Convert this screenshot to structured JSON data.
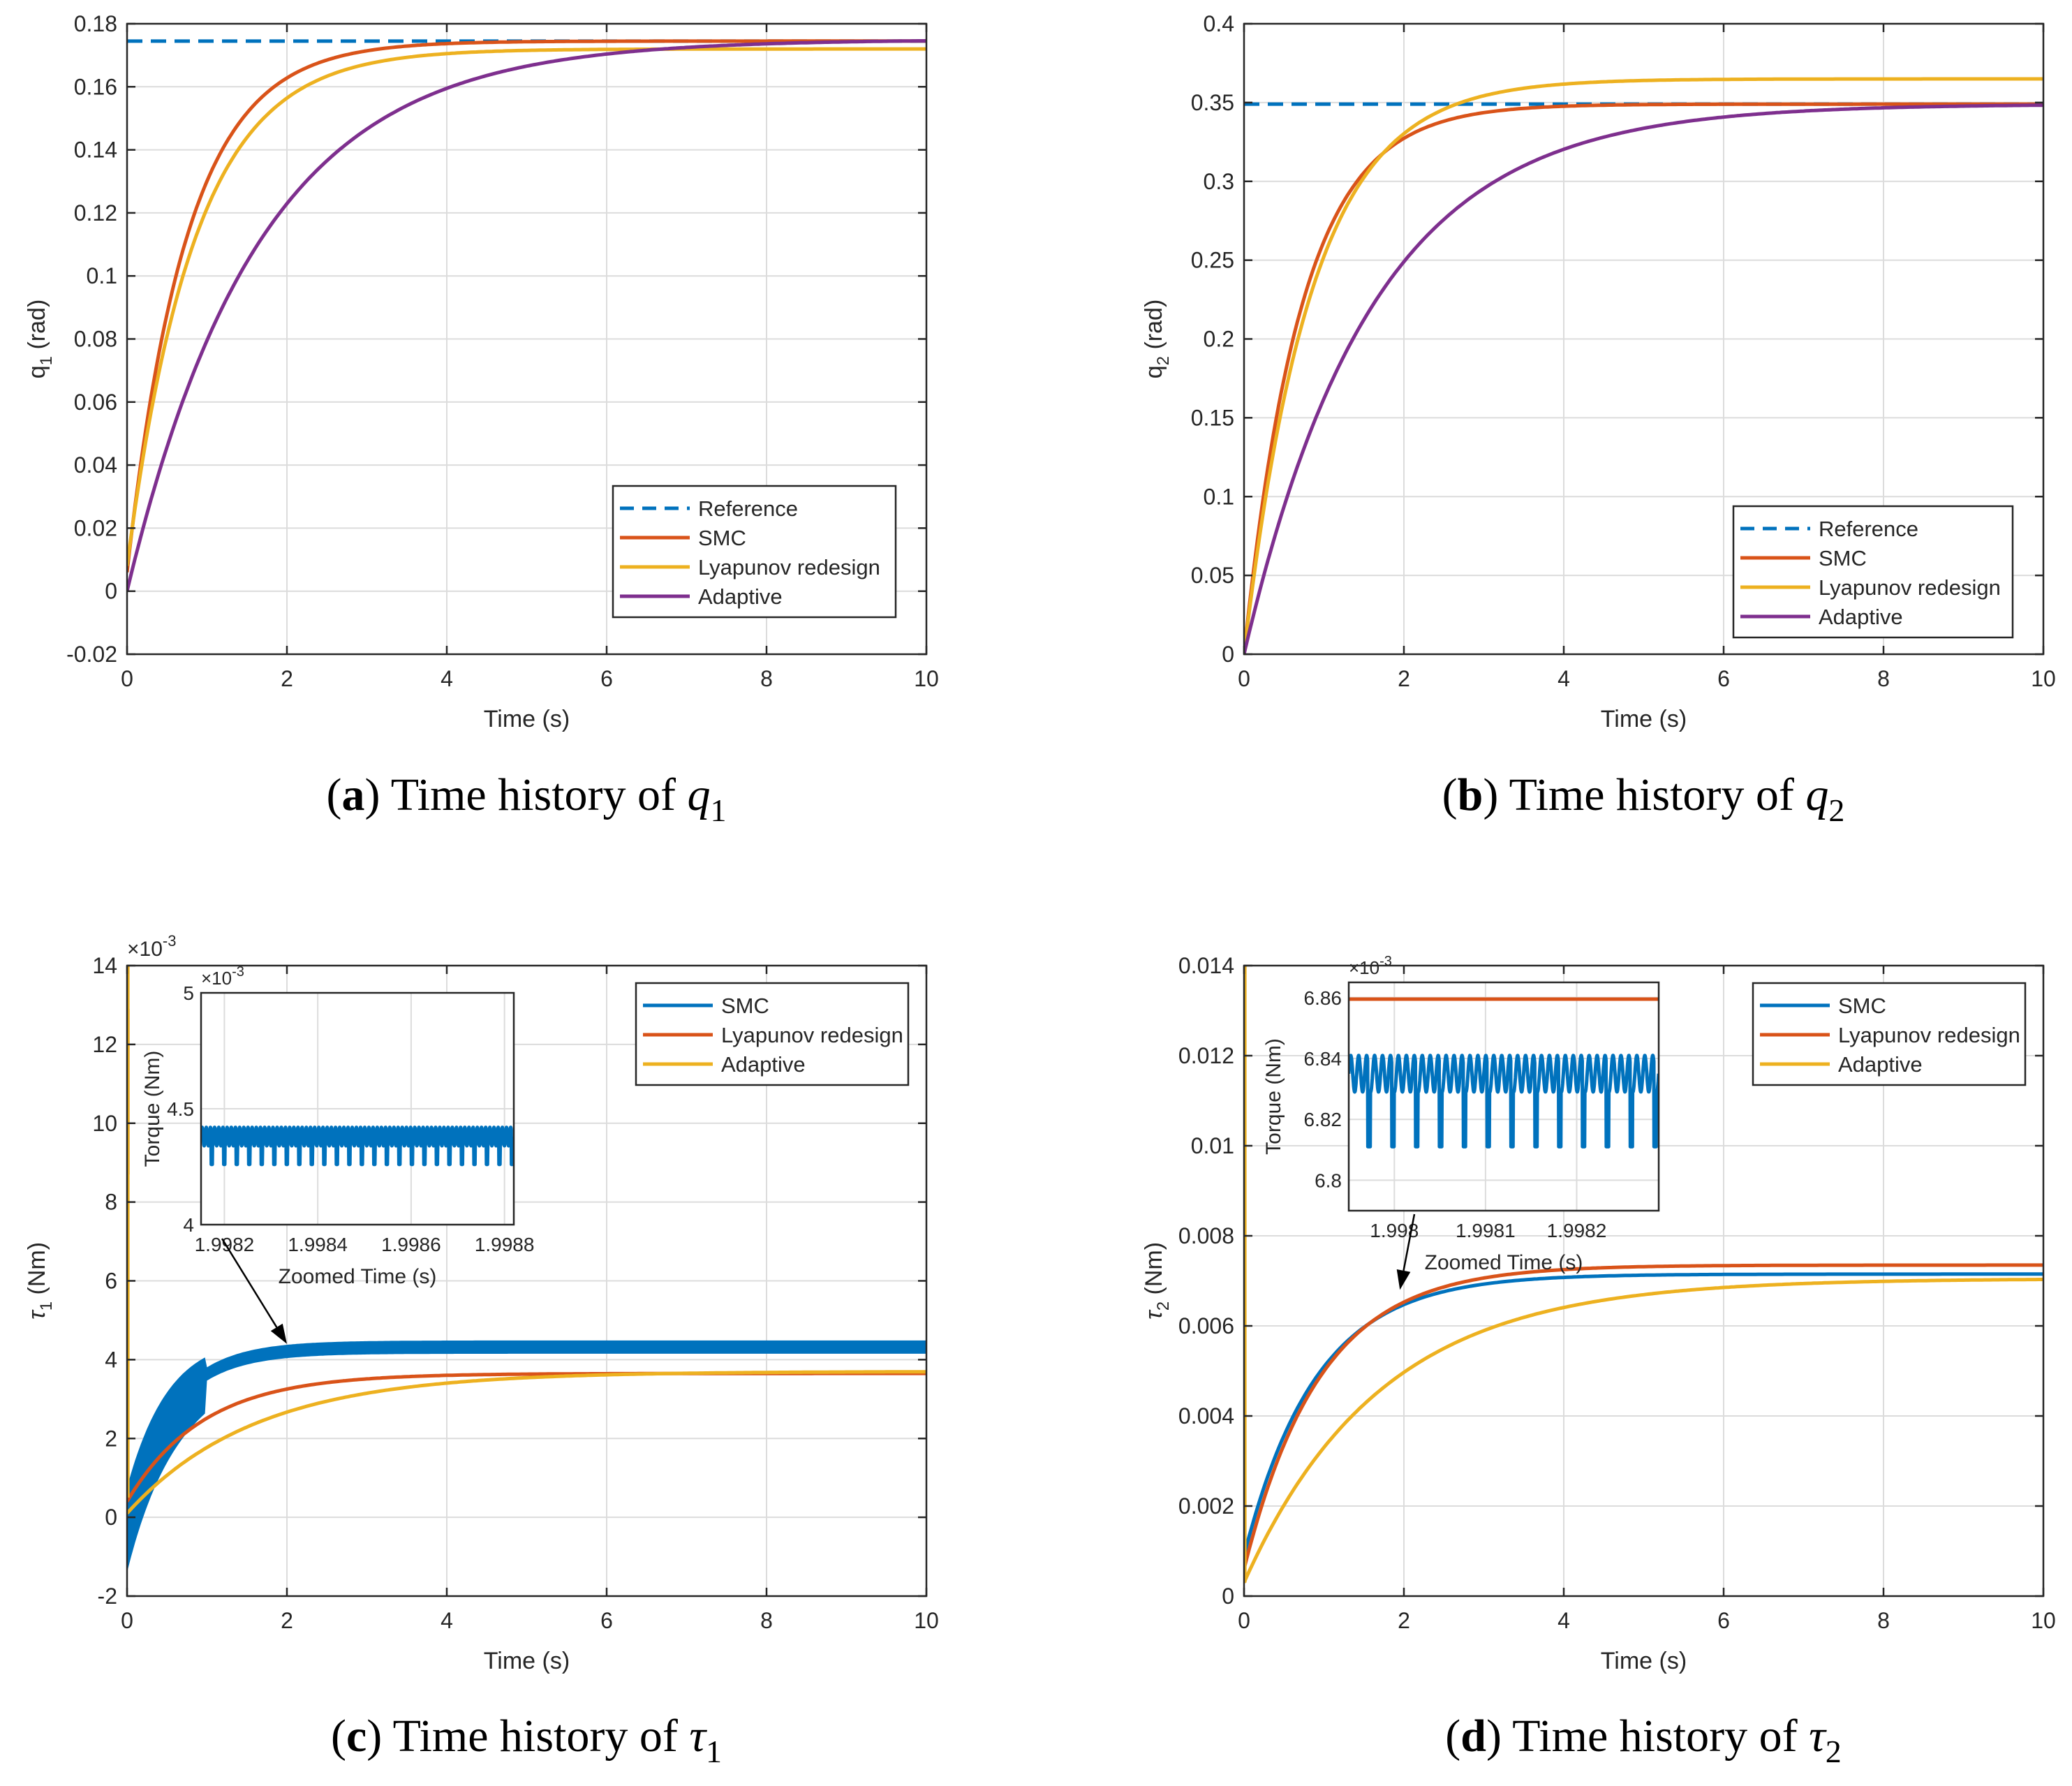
{
  "chart_data": [
    {
      "panel": "a",
      "type": "line",
      "caption": {
        "letter": "a",
        "text": "Time history of",
        "symbol": "q",
        "sub": "1"
      },
      "xlabel": "Time (s)",
      "ylabel": {
        "symbol": "q",
        "sub": "1",
        "unit": "(rad)"
      },
      "xlim": [
        0,
        10
      ],
      "ylim": [
        -0.02,
        0.18
      ],
      "xticks": [
        0,
        2,
        4,
        6,
        8,
        10
      ],
      "xtick_labels": [
        "0",
        "2",
        "4",
        "6",
        "8",
        "10"
      ],
      "yticks": [
        -0.02,
        0,
        0.02,
        0.04,
        0.06,
        0.08,
        0.1,
        0.12,
        0.14,
        0.16,
        0.18
      ],
      "ytick_labels": [
        "-0.02",
        "0",
        "0.02",
        "0.04",
        "0.06",
        "0.08",
        "0.1",
        "0.12",
        "0.14",
        "0.16",
        "0.18"
      ],
      "legend": "bottom-right",
      "series": [
        {
          "name": "Reference",
          "color": "#0072BD",
          "dash": true,
          "kind": "const",
          "value": 0.1745
        },
        {
          "name": "SMC",
          "color": "#D95319",
          "kind": "exp",
          "start": 0.006,
          "final": 0.1745,
          "tau": 0.75
        },
        {
          "name": "Lyapunov redesign",
          "color": "#EDB120",
          "kind": "exp",
          "start": 0.008,
          "final": 0.172,
          "tau": 0.85
        },
        {
          "name": "Adaptive",
          "color": "#7E2F8E",
          "kind": "exp",
          "start": 0.0,
          "final": 0.175,
          "tau": 1.65
        }
      ]
    },
    {
      "panel": "b",
      "type": "line",
      "caption": {
        "letter": "b",
        "text": "Time history of",
        "symbol": "q",
        "sub": "2"
      },
      "xlabel": "Time (s)",
      "ylabel": {
        "symbol": "q",
        "sub": "2",
        "unit": "(rad)"
      },
      "xlim": [
        0,
        10
      ],
      "ylim": [
        0,
        0.4
      ],
      "xticks": [
        0,
        2,
        4,
        6,
        8,
        10
      ],
      "xtick_labels": [
        "0",
        "2",
        "4",
        "6",
        "8",
        "10"
      ],
      "yticks": [
        0,
        0.05,
        0.1,
        0.15,
        0.2,
        0.25,
        0.3,
        0.35,
        0.4
      ],
      "ytick_labels": [
        "0",
        "0.05",
        "0.1",
        "0.15",
        "0.2",
        "0.25",
        "0.3",
        "0.35",
        "0.4"
      ],
      "legend": "bottom-right",
      "series": [
        {
          "name": "Reference",
          "color": "#0072BD",
          "dash": true,
          "kind": "const",
          "value": 0.349
        },
        {
          "name": "SMC",
          "color": "#D95319",
          "kind": "exp",
          "start": 0.0,
          "final": 0.349,
          "tau": 0.72
        },
        {
          "name": "Lyapunov redesign",
          "color": "#EDB120",
          "kind": "exp",
          "start": 0.0,
          "final": 0.365,
          "tau": 0.85
        },
        {
          "name": "Adaptive",
          "color": "#7E2F8E",
          "kind": "exp",
          "start": 0.0,
          "final": 0.349,
          "tau": 1.6
        }
      ]
    },
    {
      "panel": "c",
      "type": "line",
      "caption": {
        "letter": "c",
        "text": "Time history of",
        "symbol": "τ",
        "sub": "1"
      },
      "xlabel": "Time (s)",
      "ylabel": {
        "symbol": "τ",
        "sub": "1",
        "unit": "(Nm)"
      },
      "xlim": [
        0,
        10
      ],
      "ylim": [
        -2,
        14
      ],
      "multiplier": {
        "base": "×10",
        "exp": "-3"
      },
      "xticks": [
        0,
        2,
        4,
        6,
        8,
        10
      ],
      "xtick_labels": [
        "0",
        "2",
        "4",
        "6",
        "8",
        "10"
      ],
      "yticks": [
        -2,
        0,
        2,
        4,
        6,
        8,
        10,
        12,
        14
      ],
      "ytick_labels": [
        "-2",
        "0",
        "2",
        "4",
        "6",
        "8",
        "10",
        "12",
        "14"
      ],
      "legend": "top-right",
      "series": [
        {
          "name": "SMC",
          "color": "#0072BD",
          "kind": "band",
          "start": 0.2,
          "final": 4.4,
          "tau": 0.55,
          "chatter_lo": 1.6,
          "chatter_hi": 0.25
        },
        {
          "name": "Lyapunov redesign",
          "color": "#D95319",
          "kind": "exp",
          "start": 0.4,
          "final": 3.65,
          "tau": 0.95,
          "spike": [
            8.7,
            12.9
          ]
        },
        {
          "name": "Adaptive",
          "color": "#EDB120",
          "kind": "exp",
          "start": 0.1,
          "final": 3.7,
          "tau": 1.6,
          "spike": [
            0.5,
            14
          ]
        }
      ],
      "inset": {
        "xlabel": "Zoomed Time (s)",
        "ylabel": "Torque (Nm)",
        "multiplier": {
          "base": "×10",
          "exp": "-3"
        },
        "xlim": [
          1.99815,
          1.99882
        ],
        "ylim": [
          4,
          5
        ],
        "xticks": [
          1.9982,
          1.9984,
          1.9986,
          1.9988
        ],
        "xtick_labels": [
          "1.9982",
          "1.9984",
          "1.9986",
          "1.9988"
        ],
        "yticks": [
          4,
          4.5,
          5
        ],
        "ytick_labels": [
          "4",
          "4.5",
          "5"
        ],
        "signal": {
          "color": "#0072BD",
          "base": 4.38,
          "upper": 4.42,
          "lower": 4.26,
          "cycles": 25
        },
        "arrow_target_x": 2.0,
        "arrow_target_y": 4.4
      }
    },
    {
      "panel": "d",
      "type": "line",
      "caption": {
        "letter": "d",
        "text": "Time history of",
        "symbol": "τ",
        "sub": "2"
      },
      "xlabel": "Time (s)",
      "ylabel": {
        "symbol": "τ",
        "sub": "2",
        "unit": "(Nm)"
      },
      "xlim": [
        0,
        10
      ],
      "ylim": [
        0,
        0.014
      ],
      "xticks": [
        0,
        2,
        4,
        6,
        8,
        10
      ],
      "xtick_labels": [
        "0",
        "2",
        "4",
        "6",
        "8",
        "10"
      ],
      "yticks": [
        0,
        0.002,
        0.004,
        0.006,
        0.008,
        0.01,
        0.012,
        0.014
      ],
      "ytick_labels": [
        "0",
        "0.002",
        "0.004",
        "0.006",
        "0.008",
        "0.01",
        "0.012",
        "0.014"
      ],
      "legend": "top-right",
      "series": [
        {
          "name": "SMC",
          "color": "#0072BD",
          "kind": "exp",
          "start": 0.0009,
          "final": 0.00715,
          "tau": 0.9,
          "width": 5
        },
        {
          "name": "Lyapunov redesign",
          "color": "#D95319",
          "kind": "exp",
          "start": 0.0006,
          "final": 0.00735,
          "tau": 0.95
        },
        {
          "name": "Adaptive",
          "color": "#EDB120",
          "kind": "exp",
          "start": 0.0003,
          "final": 0.00705,
          "tau": 1.7,
          "spike": [
            0.0003,
            0.014
          ]
        }
      ],
      "inset": {
        "xlabel": "Zoomed Time (s)",
        "ylabel": "Torque (Nm)",
        "multiplier": {
          "base": "×10",
          "exp": "-3"
        },
        "xlim": [
          1.99795,
          1.99829
        ],
        "ylim": [
          6.79,
          6.865
        ],
        "xticks": [
          1.998,
          1.9981,
          1.9982
        ],
        "xtick_labels": [
          "1.998",
          "1.9981",
          "1.9982"
        ],
        "yticks": [
          6.8,
          6.82,
          6.84,
          6.86
        ],
        "ytick_labels": [
          "6.8",
          "6.82",
          "6.84",
          "6.86"
        ],
        "signal": {
          "color": "#0072BD",
          "base": 6.835,
          "upper": 6.841,
          "lower": 6.811,
          "cycles": 13
        },
        "ref_line": {
          "color": "#D95319",
          "value": 6.8595
        },
        "arrow_target_x": 1.95,
        "arrow_target_y": 0.0068
      }
    }
  ]
}
